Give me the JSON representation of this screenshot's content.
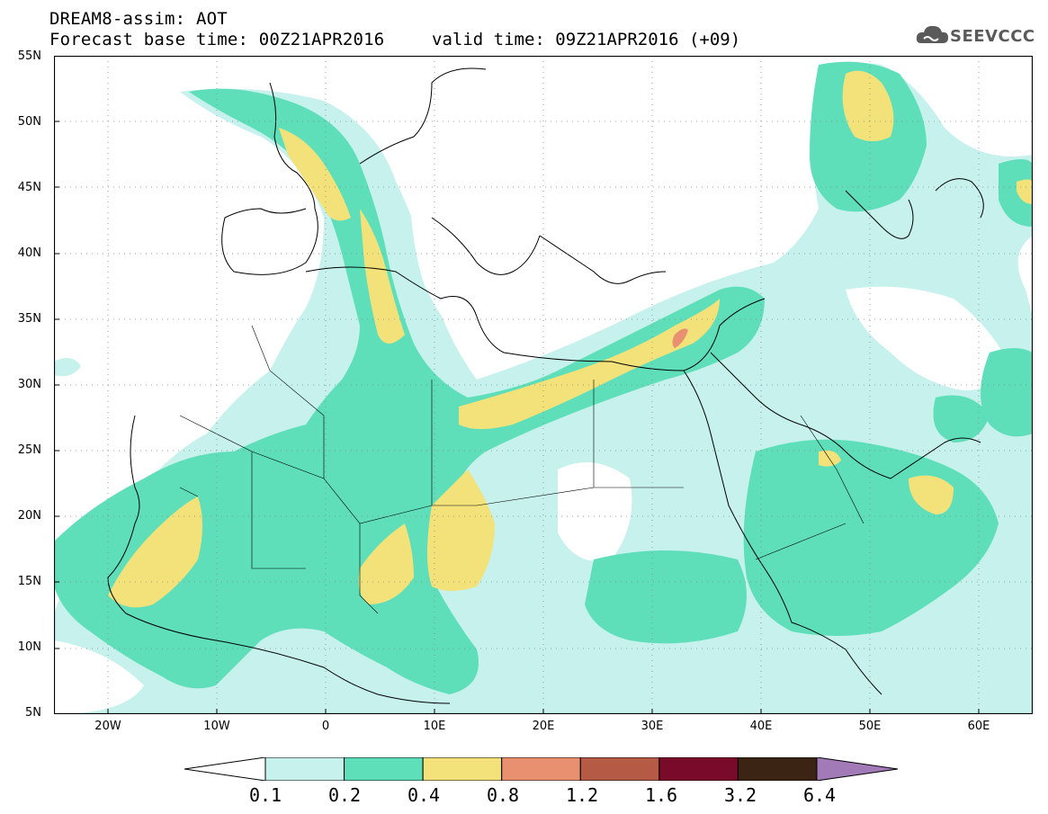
{
  "header": {
    "title_line1": "DREAM8-assim: AOT",
    "title_line2": "Forecast base time: 00Z21APR2016",
    "valid_time": "valid time: 09Z21APR2016 (+09)"
  },
  "logo": {
    "text": "SEEVCCC",
    "icon": "cloud-icon"
  },
  "map": {
    "type": "contour-map",
    "variable": "AOT",
    "lat_range": [
      5,
      55
    ],
    "lon_range": [
      -25,
      65
    ],
    "lat_labels": [
      "55N",
      "50N",
      "45N",
      "40N",
      "35N",
      "30N",
      "25N",
      "20N",
      "15N",
      "10N",
      "5N"
    ],
    "lon_labels": [
      "20W",
      "10W",
      "0",
      "10E",
      "20E",
      "30E",
      "40E",
      "50E",
      "60E"
    ],
    "grid": "dotted",
    "colors": {
      "c01": "#c6f1ec",
      "c02": "#5edfba",
      "c04": "#f3e27a",
      "c08": "#e89070",
      "c12": "#b55a44",
      "c16": "#7a0a2a",
      "c32": "#3c2415",
      "c64": "#a27ab8",
      "coast": "#000000"
    }
  },
  "colorbar": {
    "labels": [
      "0.1",
      "0.2",
      "0.4",
      "0.8",
      "1.2",
      "1.6",
      "3.2",
      "6.4"
    ],
    "colors": [
      "#c6f1ec",
      "#5edfba",
      "#f3e27a",
      "#e89070",
      "#b55a44",
      "#7a0a2a",
      "#3c2415"
    ],
    "over_color": "#a27ab8",
    "under_color": "#ffffff"
  }
}
